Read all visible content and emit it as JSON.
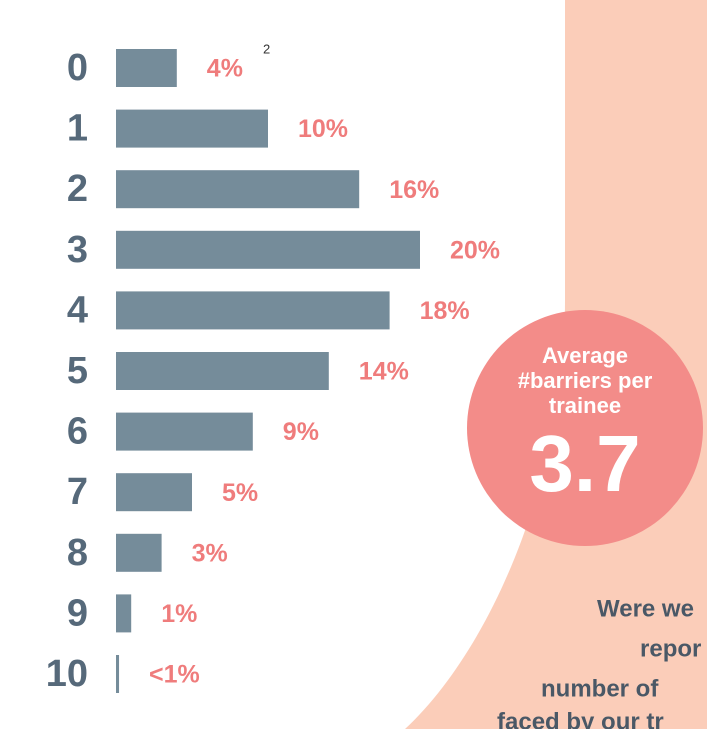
{
  "chart_data": {
    "type": "bar",
    "orientation": "horizontal",
    "categories": [
      "0",
      "1",
      "2",
      "3",
      "4",
      "5",
      "6",
      "7",
      "8",
      "9",
      "10"
    ],
    "values": [
      4,
      10,
      16,
      20,
      18,
      14,
      9,
      5,
      3,
      1,
      0.2
    ],
    "value_labels": [
      "4%",
      "10%",
      "16%",
      "20%",
      "18%",
      "14%",
      "9%",
      "5%",
      "3%",
      "1%",
      "<1%"
    ],
    "color": "#758c9a",
    "label_color": "#ef7c7c",
    "footnote": "2"
  },
  "badge": {
    "title": [
      "Average",
      "#barriers per",
      "trainee"
    ],
    "value": 3.7
  },
  "caption": [
    "Were we",
    "repor",
    "number of",
    "faced by our tr"
  ]
}
